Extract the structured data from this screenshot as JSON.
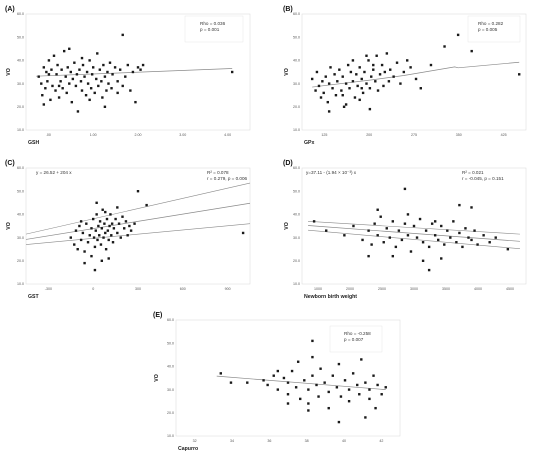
{
  "chart_data": [
    {
      "type": "scatter",
      "panel_label": "(A)",
      "xlabel": "GSH",
      "ylabel": "VO",
      "xticks": [
        ".00",
        "1.00",
        "2.00",
        "3.00",
        "4.00"
      ],
      "yticks": [
        "10.0",
        "20.0",
        "30.0",
        "40.0",
        "50.0",
        "60.0"
      ],
      "xlim": [
        -0.2,
        4.2
      ],
      "ylim": [
        10,
        60
      ],
      "stats": [
        "Rho = 0.036",
        "p = 0.001"
      ],
      "points": [
        [
          0.05,
          33
        ],
        [
          0.1,
          30
        ],
        [
          0.12,
          25
        ],
        [
          0.15,
          37
        ],
        [
          0.18,
          28
        ],
        [
          0.2,
          35
        ],
        [
          0.22,
          31
        ],
        [
          0.25,
          40
        ],
        [
          0.28,
          23
        ],
        [
          0.3,
          36
        ],
        [
          0.32,
          29
        ],
        [
          0.35,
          42
        ],
        [
          0.38,
          27
        ],
        [
          0.4,
          34
        ],
        [
          0.42,
          38
        ],
        [
          0.45,
          24
        ],
        [
          0.48,
          31
        ],
        [
          0.5,
          36
        ],
        [
          0.52,
          28
        ],
        [
          0.55,
          44
        ],
        [
          0.58,
          33
        ],
        [
          0.6,
          26
        ],
        [
          0.62,
          37
        ],
        [
          0.65,
          30
        ],
        [
          0.68,
          35
        ],
        [
          0.7,
          22
        ],
        [
          0.72,
          32
        ],
        [
          0.75,
          39
        ],
        [
          0.78,
          29
        ],
        [
          0.8,
          34
        ],
        [
          0.82,
          18
        ],
        [
          0.85,
          36
        ],
        [
          0.88,
          31
        ],
        [
          0.9,
          27
        ],
        [
          0.92,
          38
        ],
        [
          0.95,
          33
        ],
        [
          0.98,
          25
        ],
        [
          1.0,
          35
        ],
        [
          1.02,
          30
        ],
        [
          1.05,
          40
        ],
        [
          1.08,
          28
        ],
        [
          1.1,
          34
        ],
        [
          1.12,
          37
        ],
        [
          1.15,
          26
        ],
        [
          1.18,
          32
        ],
        [
          1.2,
          43
        ],
        [
          1.22,
          29
        ],
        [
          1.25,
          36
        ],
        [
          1.28,
          31
        ],
        [
          1.3,
          24
        ],
        [
          1.32,
          38
        ],
        [
          1.35,
          33
        ],
        [
          1.38,
          27
        ],
        [
          1.4,
          35
        ],
        [
          1.42,
          30
        ],
        [
          1.45,
          39
        ],
        [
          1.48,
          28
        ],
        [
          1.5,
          34
        ],
        [
          1.55,
          37
        ],
        [
          1.6,
          31
        ],
        [
          1.65,
          36
        ],
        [
          1.7,
          29
        ],
        [
          1.75,
          33
        ],
        [
          1.8,
          38
        ],
        [
          1.85,
          27
        ],
        [
          1.9,
          35
        ],
        [
          1.95,
          22
        ],
        [
          2.0,
          37
        ],
        [
          2.05,
          36
        ],
        [
          2.1,
          38
        ],
        [
          0.65,
          45
        ],
        [
          1.7,
          51
        ],
        [
          3.85,
          35
        ],
        [
          0.15,
          21
        ],
        [
          0.9,
          41
        ],
        [
          1.35,
          20
        ],
        [
          0.45,
          29
        ],
        [
          1.05,
          23
        ],
        [
          1.6,
          26
        ],
        [
          0.25,
          34
        ]
      ],
      "fit": {
        "x": [
          0.0,
          3.85
        ],
        "y": [
          33.2,
          36.5
        ]
      }
    },
    {
      "type": "scatter",
      "panel_label": "(B)",
      "xlabel": "GPx",
      "ylabel": "VO",
      "xticks": [
        "125",
        "200",
        "275",
        "350",
        "425"
      ],
      "yticks": [
        "10.0",
        "20.0",
        "30.0",
        "40.0",
        "50.0",
        "60.0"
      ],
      "xlim": [
        110,
        440
      ],
      "ylim": [
        10,
        60
      ],
      "stats": [
        "Rho = 0.282",
        "p = 0.005"
      ],
      "points": [
        [
          125,
          32
        ],
        [
          130,
          27
        ],
        [
          132,
          35
        ],
        [
          135,
          29
        ],
        [
          138,
          24
        ],
        [
          140,
          31
        ],
        [
          142,
          26
        ],
        [
          145,
          33
        ],
        [
          148,
          22
        ],
        [
          150,
          30
        ],
        [
          152,
          37
        ],
        [
          155,
          28
        ],
        [
          158,
          34
        ],
        [
          160,
          25
        ],
        [
          162,
          31
        ],
        [
          165,
          36
        ],
        [
          168,
          27
        ],
        [
          170,
          33
        ],
        [
          172,
          20
        ],
        [
          175,
          30
        ],
        [
          178,
          38
        ],
        [
          180,
          28
        ],
        [
          182,
          35
        ],
        [
          185,
          31
        ],
        [
          188,
          24
        ],
        [
          190,
          34
        ],
        [
          192,
          29
        ],
        [
          195,
          37
        ],
        [
          198,
          32
        ],
        [
          200,
          26
        ],
        [
          202,
          35
        ],
        [
          205,
          30
        ],
        [
          208,
          40
        ],
        [
          210,
          28
        ],
        [
          212,
          33
        ],
        [
          215,
          36
        ],
        [
          218,
          31
        ],
        [
          220,
          42
        ],
        [
          222,
          27
        ],
        [
          225,
          34
        ],
        [
          228,
          38
        ],
        [
          230,
          29
        ],
        [
          232,
          35
        ],
        [
          235,
          43
        ],
        [
          238,
          31
        ],
        [
          240,
          36
        ],
        [
          245,
          33
        ],
        [
          250,
          39
        ],
        [
          255,
          30
        ],
        [
          260,
          35
        ],
        [
          265,
          40
        ],
        [
          270,
          37
        ],
        [
          278,
          32
        ],
        [
          285,
          28
        ],
        [
          300,
          38
        ],
        [
          320,
          46
        ],
        [
          340,
          51
        ],
        [
          360,
          44
        ],
        [
          430,
          34
        ],
        [
          150,
          18
        ],
        [
          175,
          21
        ],
        [
          195,
          23
        ],
        [
          210,
          19
        ],
        [
          185,
          40
        ],
        [
          205,
          42
        ],
        [
          170,
          25
        ],
        [
          215,
          38
        ],
        [
          198,
          28
        ]
      ],
      "fit": {
        "x": [
          125,
          210,
          260,
          335,
          340,
          430
        ],
        "y": [
          28.5,
          31.5,
          33.5,
          37.2,
          36.8,
          39.2
        ]
      }
    },
    {
      "type": "scatter",
      "panel_label": "(C)",
      "xlabel": "GST",
      "ylabel": "VO",
      "xticks": [
        "-300",
        "0",
        "300",
        "600",
        "900"
      ],
      "yticks": [
        "10.0",
        "20.0",
        "30.0",
        "40.0",
        "50.0",
        "60.0"
      ],
      "xlim": [
        -380,
        920
      ],
      "ylim": [
        10,
        60
      ],
      "annotation": "y = 26.52 + 204 x",
      "stats": [
        "R² = 0.078",
        "r = 0.279, p = 0.006"
      ],
      "points": [
        [
          -120,
          30
        ],
        [
          -100,
          27
        ],
        [
          -90,
          33
        ],
        [
          -80,
          25
        ],
        [
          -70,
          35
        ],
        [
          -60,
          29
        ],
        [
          -50,
          32
        ],
        [
          -40,
          24
        ],
        [
          -30,
          36
        ],
        [
          -20,
          28
        ],
        [
          -10,
          31
        ],
        [
          0,
          34
        ],
        [
          0,
          22
        ],
        [
          10,
          38
        ],
        [
          15,
          30
        ],
        [
          20,
          26
        ],
        [
          25,
          33
        ],
        [
          30,
          40
        ],
        [
          35,
          29
        ],
        [
          40,
          35
        ],
        [
          45,
          31
        ],
        [
          50,
          37
        ],
        [
          55,
          27
        ],
        [
          60,
          34
        ],
        [
          65,
          42
        ],
        [
          70,
          30
        ],
        [
          75,
          36
        ],
        [
          80,
          32
        ],
        [
          85,
          25
        ],
        [
          90,
          38
        ],
        [
          95,
          33
        ],
        [
          100,
          29
        ],
        [
          105,
          35
        ],
        [
          110,
          40
        ],
        [
          115,
          31
        ],
        [
          120,
          36
        ],
        [
          125,
          28
        ],
        [
          130,
          34
        ],
        [
          140,
          38
        ],
        [
          150,
          32
        ],
        [
          160,
          36
        ],
        [
          170,
          30
        ],
        [
          180,
          39
        ],
        [
          190,
          34
        ],
        [
          200,
          37
        ],
        [
          210,
          31
        ],
        [
          220,
          35
        ],
        [
          230,
          33
        ],
        [
          250,
          36
        ],
        [
          270,
          50
        ],
        [
          320,
          44
        ],
        [
          880,
          32
        ],
        [
          -40,
          19
        ],
        [
          20,
          16
        ],
        [
          60,
          20
        ],
        [
          100,
          21
        ],
        [
          150,
          43
        ],
        [
          -60,
          37
        ],
        [
          30,
          45
        ],
        [
          80,
          41
        ]
      ],
      "fit": {
        "x": [
          -380,
          920
        ],
        "y": [
          29.2,
          44.8
        ]
      },
      "ci_upper": {
        "x": [
          -380,
          920
        ],
        "y": [
          31.5,
          53.5
        ]
      },
      "ci_lower": {
        "x": [
          -380,
          920
        ],
        "y": [
          27.0,
          36.0
        ]
      }
    },
    {
      "type": "scatter",
      "panel_label": "(D)",
      "xlabel": "Newborn birth weight",
      "ylabel": "VO",
      "xticks": [
        "1000",
        "2000",
        "2500",
        "3000",
        "3500",
        "4000",
        "4500"
      ],
      "yticks": [
        "10.0",
        "20.0",
        "30.0",
        "40.0",
        "50.0",
        "60.0"
      ],
      "xlim": [
        900,
        4600
      ],
      "ylim": [
        10,
        60
      ],
      "annotation": "y=37.11 - (1.94 × 10⁻³) x",
      "stats": [
        "R² = 0.021",
        "r = -0.045, p = 0.151"
      ],
      "points": [
        [
          1100,
          37
        ],
        [
          1300,
          33
        ],
        [
          1600,
          31
        ],
        [
          1750,
          35
        ],
        [
          1900,
          29
        ],
        [
          2000,
          33
        ],
        [
          2050,
          27
        ],
        [
          2100,
          36
        ],
        [
          2150,
          31
        ],
        [
          2200,
          39
        ],
        [
          2250,
          28
        ],
        [
          2300,
          34
        ],
        [
          2350,
          30
        ],
        [
          2400,
          37
        ],
        [
          2450,
          26
        ],
        [
          2500,
          33
        ],
        [
          2550,
          29
        ],
        [
          2600,
          36
        ],
        [
          2650,
          31
        ],
        [
          2700,
          24
        ],
        [
          2750,
          35
        ],
        [
          2800,
          30
        ],
        [
          2850,
          38
        ],
        [
          2900,
          28
        ],
        [
          2950,
          33
        ],
        [
          3000,
          26
        ],
        [
          3050,
          36
        ],
        [
          3100,
          31
        ],
        [
          3150,
          29
        ],
        [
          3200,
          35
        ],
        [
          3250,
          27
        ],
        [
          3300,
          33
        ],
        [
          3350,
          30
        ],
        [
          3400,
          37
        ],
        [
          3450,
          28
        ],
        [
          3500,
          32
        ],
        [
          3550,
          26
        ],
        [
          3600,
          34
        ],
        [
          3650,
          30
        ],
        [
          3700,
          29
        ],
        [
          3750,
          33
        ],
        [
          3800,
          27
        ],
        [
          3900,
          31
        ],
        [
          4000,
          28
        ],
        [
          4100,
          30
        ],
        [
          4300,
          25
        ],
        [
          2600,
          51
        ],
        [
          3700,
          43
        ],
        [
          3500,
          44
        ],
        [
          2000,
          22
        ],
        [
          2400,
          22
        ],
        [
          2900,
          20
        ],
        [
          3000,
          16
        ],
        [
          3200,
          21
        ],
        [
          2150,
          42
        ],
        [
          2650,
          40
        ],
        [
          3100,
          37
        ]
      ],
      "fit": {
        "x": [
          1000,
          4500
        ],
        "y": [
          35.2,
          28.4
        ]
      },
      "ci_upper": {
        "x": [
          1000,
          4500
        ],
        "y": [
          37.0,
          31.5
        ]
      },
      "ci_lower": {
        "x": [
          1000,
          4500
        ],
        "y": [
          33.2,
          25.2
        ]
      }
    },
    {
      "type": "scatter",
      "panel_label": "(E)",
      "xlabel": "Capurro",
      "ylabel": "VO",
      "xticks": [
        "32",
        "34",
        "36",
        "38",
        "40",
        "42"
      ],
      "yticks": [
        "10.0",
        "20.0",
        "30.0",
        "40.0",
        "50.0",
        "60.0"
      ],
      "xlim": [
        31.5,
        42.5
      ],
      "ylim": [
        10,
        60
      ],
      "stats": [
        "Rho = -0.258",
        "p = 0.007"
      ],
      "points": [
        [
          33.7,
          37
        ],
        [
          34.2,
          33
        ],
        [
          35,
          33
        ],
        [
          35.8,
          34
        ],
        [
          36,
          32
        ],
        [
          36.3,
          36
        ],
        [
          36.5,
          30
        ],
        [
          36.8,
          35
        ],
        [
          37,
          33
        ],
        [
          37,
          28
        ],
        [
          37.2,
          38
        ],
        [
          37.4,
          31
        ],
        [
          37.6,
          26
        ],
        [
          37.8,
          34
        ],
        [
          38,
          30
        ],
        [
          38,
          24
        ],
        [
          38.2,
          36
        ],
        [
          38.2,
          44
        ],
        [
          38.4,
          32
        ],
        [
          38.5,
          27
        ],
        [
          38.6,
          39
        ],
        [
          38.8,
          33
        ],
        [
          39,
          29
        ],
        [
          39,
          22
        ],
        [
          39.2,
          36
        ],
        [
          39.4,
          31
        ],
        [
          39.5,
          41
        ],
        [
          39.6,
          27
        ],
        [
          39.8,
          34
        ],
        [
          40,
          30
        ],
        [
          40,
          25
        ],
        [
          40.2,
          37
        ],
        [
          40.4,
          32
        ],
        [
          40.5,
          28
        ],
        [
          40.6,
          43
        ],
        [
          40.8,
          33
        ],
        [
          41,
          26
        ],
        [
          41,
          30
        ],
        [
          41.2,
          36
        ],
        [
          41.3,
          22
        ],
        [
          41.4,
          32
        ],
        [
          41.6,
          28
        ],
        [
          41.8,
          31
        ],
        [
          36.5,
          38
        ],
        [
          37.5,
          42
        ],
        [
          38.2,
          51
        ],
        [
          38,
          21
        ],
        [
          39.5,
          16
        ],
        [
          40.8,
          18
        ],
        [
          37,
          24
        ]
      ],
      "fit": {
        "x": [
          33.5,
          41.8
        ],
        "y": [
          35.8,
          30.0
        ]
      }
    }
  ]
}
